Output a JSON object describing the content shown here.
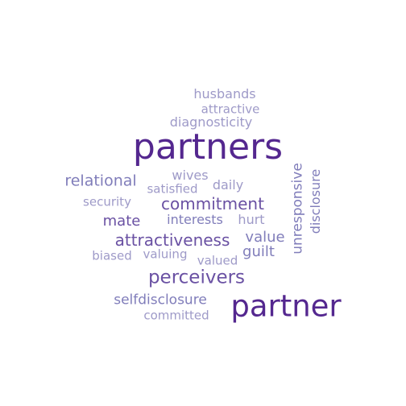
{
  "colors": {
    "background": "#ffffff",
    "dark": "#54278f",
    "mid": "#6a51a3",
    "light": "#807dba",
    "lighter": "#9e9ac8"
  },
  "words": [
    {
      "text": "partners",
      "color": "#54278f",
      "orientation": "horizontal"
    },
    {
      "text": "partner",
      "color": "#54278f",
      "orientation": "horizontal"
    },
    {
      "text": "attractiveness",
      "color": "#6a51a3",
      "orientation": "horizontal"
    },
    {
      "text": "perceivers",
      "color": "#6a51a3",
      "orientation": "horizontal"
    },
    {
      "text": "commitment",
      "color": "#6a51a3",
      "orientation": "horizontal"
    },
    {
      "text": "relational",
      "color": "#807dba",
      "orientation": "horizontal"
    },
    {
      "text": "mate",
      "color": "#6a51a3",
      "orientation": "horizontal"
    },
    {
      "text": "value",
      "color": "#807dba",
      "orientation": "horizontal"
    },
    {
      "text": "guilt",
      "color": "#807dba",
      "orientation": "horizontal"
    },
    {
      "text": "unresponsive",
      "color": "#807dba",
      "orientation": "vertical"
    },
    {
      "text": "disclosure",
      "color": "#807dba",
      "orientation": "vertical"
    },
    {
      "text": "selfdisclosure",
      "color": "#807dba",
      "orientation": "horizontal"
    },
    {
      "text": "husbands",
      "color": "#9e9ac8",
      "orientation": "horizontal"
    },
    {
      "text": "attractive",
      "color": "#9e9ac8",
      "orientation": "horizontal"
    },
    {
      "text": "diagnosticity",
      "color": "#9e9ac8",
      "orientation": "horizontal"
    },
    {
      "text": "wives",
      "color": "#9e9ac8",
      "orientation": "horizontal"
    },
    {
      "text": "daily",
      "color": "#9e9ac8",
      "orientation": "horizontal"
    },
    {
      "text": "satisfied",
      "color": "#9e9ac8",
      "orientation": "horizontal"
    },
    {
      "text": "security",
      "color": "#9e9ac8",
      "orientation": "horizontal"
    },
    {
      "text": "interests",
      "color": "#807dba",
      "orientation": "horizontal"
    },
    {
      "text": "hurt",
      "color": "#9e9ac8",
      "orientation": "horizontal"
    },
    {
      "text": "biased",
      "color": "#9e9ac8",
      "orientation": "horizontal"
    },
    {
      "text": "valuing",
      "color": "#9e9ac8",
      "orientation": "horizontal"
    },
    {
      "text": "valued",
      "color": "#9e9ac8",
      "orientation": "horizontal"
    },
    {
      "text": "committed",
      "color": "#9e9ac8",
      "orientation": "horizontal"
    }
  ]
}
